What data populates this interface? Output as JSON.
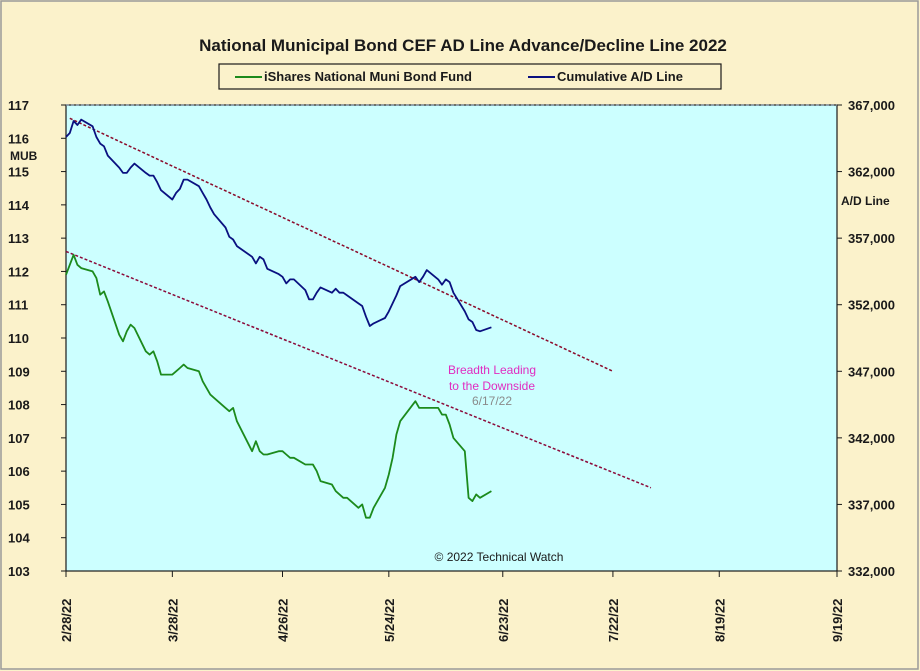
{
  "chart_data": {
    "type": "line",
    "title": "National Municipal Bond CEF AD Line Advance/Decline Line 2022",
    "left_axis_label": "MUB",
    "right_axis_label": "A/D Line",
    "left_ylim": [
      103,
      117
    ],
    "right_ylim": [
      332000,
      367000
    ],
    "left_ticks": [
      "117",
      "116",
      "115",
      "114",
      "113",
      "112",
      "111",
      "110",
      "109",
      "108",
      "107",
      "106",
      "105",
      "104",
      "103"
    ],
    "right_ticks": [
      "367,000",
      "362,000",
      "357,000",
      "352,000",
      "347,000",
      "342,000",
      "337,000",
      "332,000"
    ],
    "x_ticks": [
      "2/28/22",
      "3/28/22",
      "4/26/22",
      "5/24/22",
      "6/23/22",
      "7/22/22",
      "8/19/22",
      "9/19/22"
    ],
    "xlim": [
      "2022-02-28",
      "2022-09-19"
    ],
    "grid": false,
    "legend_placement": "top-center",
    "series": [
      {
        "name": "iShares National Muni Bond Fund",
        "axis": "left",
        "color": "#1c8a1c",
        "points": [
          [
            "2022-02-28",
            111.9
          ],
          [
            "2022-03-01",
            112.2
          ],
          [
            "2022-03-02",
            112.5
          ],
          [
            "2022-03-03",
            112.2
          ],
          [
            "2022-03-04",
            112.1
          ],
          [
            "2022-03-07",
            112.0
          ],
          [
            "2022-03-08",
            111.8
          ],
          [
            "2022-03-09",
            111.3
          ],
          [
            "2022-03-10",
            111.4
          ],
          [
            "2022-03-11",
            111.1
          ],
          [
            "2022-03-14",
            110.1
          ],
          [
            "2022-03-15",
            109.9
          ],
          [
            "2022-03-16",
            110.2
          ],
          [
            "2022-03-17",
            110.4
          ],
          [
            "2022-03-18",
            110.3
          ],
          [
            "2022-03-21",
            109.6
          ],
          [
            "2022-03-22",
            109.5
          ],
          [
            "2022-03-23",
            109.6
          ],
          [
            "2022-03-24",
            109.3
          ],
          [
            "2022-03-25",
            108.9
          ],
          [
            "2022-03-28",
            108.9
          ],
          [
            "2022-03-29",
            109.0
          ],
          [
            "2022-03-30",
            109.1
          ],
          [
            "2022-03-31",
            109.2
          ],
          [
            "2022-04-01",
            109.1
          ],
          [
            "2022-04-04",
            109.0
          ],
          [
            "2022-04-05",
            108.7
          ],
          [
            "2022-04-06",
            108.5
          ],
          [
            "2022-04-07",
            108.3
          ],
          [
            "2022-04-08",
            108.2
          ],
          [
            "2022-04-11",
            107.9
          ],
          [
            "2022-04-12",
            107.8
          ],
          [
            "2022-04-13",
            107.9
          ],
          [
            "2022-04-14",
            107.5
          ],
          [
            "2022-04-18",
            106.6
          ],
          [
            "2022-04-19",
            106.9
          ],
          [
            "2022-04-20",
            106.6
          ],
          [
            "2022-04-21",
            106.5
          ],
          [
            "2022-04-22",
            106.5
          ],
          [
            "2022-04-25",
            106.6
          ],
          [
            "2022-04-26",
            106.6
          ],
          [
            "2022-04-27",
            106.5
          ],
          [
            "2022-04-28",
            106.4
          ],
          [
            "2022-04-29",
            106.4
          ],
          [
            "2022-05-02",
            106.2
          ],
          [
            "2022-05-03",
            106.2
          ],
          [
            "2022-05-04",
            106.2
          ],
          [
            "2022-05-05",
            106.0
          ],
          [
            "2022-05-06",
            105.7
          ],
          [
            "2022-05-09",
            105.6
          ],
          [
            "2022-05-10",
            105.4
          ],
          [
            "2022-05-11",
            105.3
          ],
          [
            "2022-05-12",
            105.2
          ],
          [
            "2022-05-13",
            105.2
          ],
          [
            "2022-05-16",
            104.9
          ],
          [
            "2022-05-17",
            105.0
          ],
          [
            "2022-05-18",
            104.6
          ],
          [
            "2022-05-19",
            104.6
          ],
          [
            "2022-05-20",
            104.9
          ],
          [
            "2022-05-23",
            105.5
          ],
          [
            "2022-05-24",
            105.9
          ],
          [
            "2022-05-25",
            106.4
          ],
          [
            "2022-05-26",
            107.1
          ],
          [
            "2022-05-27",
            107.5
          ],
          [
            "2022-05-31",
            108.1
          ],
          [
            "2022-06-01",
            107.9
          ],
          [
            "2022-06-02",
            107.9
          ],
          [
            "2022-06-03",
            107.9
          ],
          [
            "2022-06-06",
            107.9
          ],
          [
            "2022-06-07",
            107.7
          ],
          [
            "2022-06-08",
            107.7
          ],
          [
            "2022-06-09",
            107.4
          ],
          [
            "2022-06-10",
            107.0
          ],
          [
            "2022-06-13",
            106.6
          ],
          [
            "2022-06-14",
            105.2
          ],
          [
            "2022-06-15",
            105.1
          ],
          [
            "2022-06-16",
            105.3
          ],
          [
            "2022-06-17",
            105.2
          ],
          [
            "2022-06-20",
            105.4
          ]
        ]
      },
      {
        "name": "Cumulative A/D Line",
        "axis": "right",
        "color": "#0a1080",
        "points": [
          [
            "2022-02-28",
            364600
          ],
          [
            "2022-03-01",
            364900
          ],
          [
            "2022-03-02",
            365800
          ],
          [
            "2022-03-03",
            365500
          ],
          [
            "2022-03-04",
            365900
          ],
          [
            "2022-03-07",
            365400
          ],
          [
            "2022-03-08",
            364600
          ],
          [
            "2022-03-09",
            364100
          ],
          [
            "2022-03-10",
            363900
          ],
          [
            "2022-03-11",
            363200
          ],
          [
            "2022-03-14",
            362300
          ],
          [
            "2022-03-15",
            361900
          ],
          [
            "2022-03-16",
            361900
          ],
          [
            "2022-03-17",
            362300
          ],
          [
            "2022-03-18",
            362600
          ],
          [
            "2022-03-21",
            361900
          ],
          [
            "2022-03-22",
            361700
          ],
          [
            "2022-03-23",
            361700
          ],
          [
            "2022-03-24",
            361200
          ],
          [
            "2022-03-25",
            360600
          ],
          [
            "2022-03-28",
            359900
          ],
          [
            "2022-03-29",
            360400
          ],
          [
            "2022-03-30",
            360700
          ],
          [
            "2022-03-31",
            361400
          ],
          [
            "2022-04-01",
            361400
          ],
          [
            "2022-04-04",
            360900
          ],
          [
            "2022-04-05",
            360400
          ],
          [
            "2022-04-06",
            359900
          ],
          [
            "2022-04-07",
            359300
          ],
          [
            "2022-04-08",
            358800
          ],
          [
            "2022-04-11",
            357800
          ],
          [
            "2022-04-12",
            357100
          ],
          [
            "2022-04-13",
            356900
          ],
          [
            "2022-04-14",
            356400
          ],
          [
            "2022-04-18",
            355600
          ],
          [
            "2022-04-19",
            355100
          ],
          [
            "2022-04-20",
            355600
          ],
          [
            "2022-04-21",
            355400
          ],
          [
            "2022-04-22",
            354700
          ],
          [
            "2022-04-25",
            354300
          ],
          [
            "2022-04-26",
            354100
          ],
          [
            "2022-04-27",
            353600
          ],
          [
            "2022-04-28",
            353900
          ],
          [
            "2022-04-29",
            353900
          ],
          [
            "2022-05-02",
            353100
          ],
          [
            "2022-05-03",
            352400
          ],
          [
            "2022-05-04",
            352400
          ],
          [
            "2022-05-05",
            352900
          ],
          [
            "2022-05-06",
            353300
          ],
          [
            "2022-05-09",
            352900
          ],
          [
            "2022-05-10",
            353200
          ],
          [
            "2022-05-11",
            352900
          ],
          [
            "2022-05-12",
            352900
          ],
          [
            "2022-05-13",
            352700
          ],
          [
            "2022-05-16",
            352100
          ],
          [
            "2022-05-17",
            351900
          ],
          [
            "2022-05-18",
            351100
          ],
          [
            "2022-05-19",
            350400
          ],
          [
            "2022-05-20",
            350600
          ],
          [
            "2022-05-23",
            351000
          ],
          [
            "2022-05-24",
            351500
          ],
          [
            "2022-05-25",
            352100
          ],
          [
            "2022-05-26",
            352700
          ],
          [
            "2022-05-27",
            353400
          ],
          [
            "2022-05-31",
            354100
          ],
          [
            "2022-06-01",
            353700
          ],
          [
            "2022-06-02",
            354100
          ],
          [
            "2022-06-03",
            354600
          ],
          [
            "2022-06-06",
            353900
          ],
          [
            "2022-06-07",
            353500
          ],
          [
            "2022-06-08",
            353900
          ],
          [
            "2022-06-09",
            353700
          ],
          [
            "2022-06-10",
            352900
          ],
          [
            "2022-06-13",
            351500
          ],
          [
            "2022-06-14",
            350900
          ],
          [
            "2022-06-15",
            350700
          ],
          [
            "2022-06-16",
            350100
          ],
          [
            "2022-06-17",
            350000
          ],
          [
            "2022-06-20",
            350300
          ]
        ]
      }
    ],
    "trendlines": [
      {
        "axis": "left",
        "from": [
          "2022-03-01",
          116.6
        ],
        "to": [
          "2022-07-22",
          109.0
        ],
        "color": "#8b0a2a"
      },
      {
        "axis": "left",
        "from": [
          "2022-02-28",
          112.6
        ],
        "to": [
          "2022-08-01",
          105.5
        ],
        "color": "#8b0a3a"
      }
    ],
    "annotations": [
      {
        "text": "Breadth Leading",
        "color": "#e02cc0"
      },
      {
        "text": "to the Downside",
        "color": "#e02cc0"
      },
      {
        "text": "6/17/22",
        "color": "#8a8a8a"
      },
      {
        "text": "© 2022 Technical Watch",
        "color": "#1a1a1a"
      }
    ],
    "colors": {
      "background": "#fbf2cb",
      "plot_area": "#ccffff"
    }
  }
}
